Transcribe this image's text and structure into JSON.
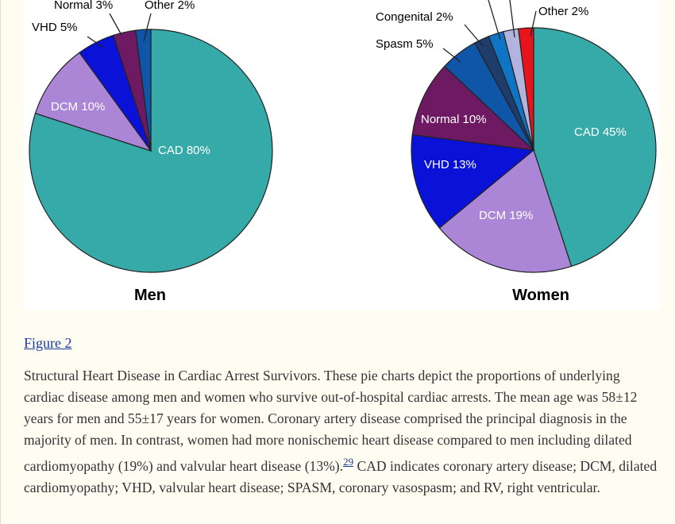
{
  "figure_link": "Figure 2",
  "caption": {
    "part1": "Structural Heart Disease in Cardiac Arrest Survivors. These pie charts depict the proportions of underlying cardiac disease among men and women who survive out-of-hospital cardiac arrests. The mean age was 58±12 years for men and 55±17 years for women. Coronary artery disease comprised the principal diagnosis in the majority of men. In contrast, women had more nonischemic heart disease compared to men including dilated cardiomyopathy (19%) and valvular heart disease (13%).",
    "ref": "29",
    "part2": " CAD indicates coronary artery disease; DCM, dilated cardiomyopathy; VHD, valvular heart disease; SPASM, coronary vasospasm; and RV, right ventricular."
  },
  "chart_data": [
    {
      "type": "pie",
      "title": "Men",
      "slices": [
        {
          "label": "CAD 80%",
          "value": 80,
          "color": "#36aaa9"
        },
        {
          "label": "DCM 10%",
          "value": 10,
          "color": "#ab86d6"
        },
        {
          "label": "VHD 5%",
          "value": 5,
          "color": "#0a12d8"
        },
        {
          "label": "Normal 3%",
          "value": 3,
          "color": "#6e1a62"
        },
        {
          "label": "Other 2%",
          "value": 2,
          "color": "#0f56a8"
        }
      ]
    },
    {
      "type": "pie",
      "title": "Women",
      "slices": [
        {
          "label": "CAD 45%",
          "value": 45,
          "color": "#36aaa9"
        },
        {
          "label": "DCM 19%",
          "value": 19,
          "color": "#ab86d6"
        },
        {
          "label": "VHD 13%",
          "value": 13,
          "color": "#0a12d8"
        },
        {
          "label": "Normal 10%",
          "value": 10,
          "color": "#6e1a62"
        },
        {
          "label": "Spasm 5%",
          "value": 5,
          "color": "#0f56a8"
        },
        {
          "label": "Congenital 2%",
          "value": 2,
          "color": "#1f3d6b"
        },
        {
          "label": "",
          "value": 2,
          "color": "#0e74c4"
        },
        {
          "label": "",
          "value": 2,
          "color": "#b3b3e0"
        },
        {
          "label": "Other 2%",
          "value": 2,
          "color": "#e8141c"
        }
      ]
    }
  ]
}
